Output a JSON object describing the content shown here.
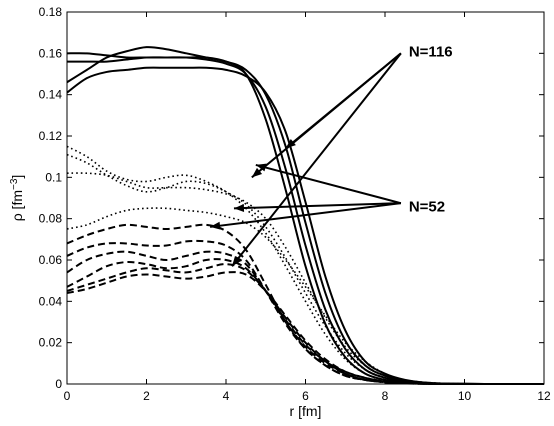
{
  "chart_data": {
    "type": "line",
    "xlabel": "r [fm]",
    "ylabel": {
      "base": "ρ [fm",
      "sup": "−3",
      "close": "]"
    },
    "xlim": [
      0,
      12
    ],
    "ylim": [
      0,
      0.18
    ],
    "xticks": [
      0,
      2,
      4,
      6,
      8,
      10,
      12
    ],
    "yticks": [
      0,
      0.02,
      0.04,
      0.06,
      0.08,
      0.1,
      0.12,
      0.14,
      0.16,
      0.18
    ],
    "xtick_labels": [
      "0",
      "2",
      "4",
      "6",
      "8",
      "10",
      "12"
    ],
    "ytick_labels": [
      "0",
      "0.02",
      "0.04",
      "0.06",
      "0.08",
      "0.1",
      "0.12",
      "0.14",
      "0.16",
      "0.18"
    ],
    "grid": false,
    "legend": "none",
    "x": [
      0,
      0.5,
      1,
      1.5,
      2,
      2.5,
      3,
      3.5,
      4,
      4.5,
      5,
      5.5,
      6,
      6.5,
      7,
      7.5,
      8,
      8.5,
      9,
      9.5,
      10,
      10.5,
      11,
      11.5,
      12
    ],
    "series": [
      {
        "style": "solid",
        "values": [
          0.16,
          0.16,
          0.159,
          0.158,
          0.158,
          0.158,
          0.158,
          0.158,
          0.156,
          0.15,
          0.128,
          0.094,
          0.057,
          0.029,
          0.013,
          0.005,
          0.002,
          0.0007,
          0.0002,
          0.0001,
          0,
          0,
          0,
          0,
          0
        ]
      },
      {
        "style": "solid",
        "values": [
          0.156,
          0.156,
          0.156,
          0.157,
          0.158,
          0.158,
          0.158,
          0.157,
          0.155,
          0.15,
          0.134,
          0.104,
          0.067,
          0.036,
          0.017,
          0.007,
          0.003,
          0.001,
          0.0003,
          0.0001,
          0,
          0,
          0,
          0,
          0
        ]
      },
      {
        "style": "solid",
        "values": [
          0.146,
          0.152,
          0.158,
          0.161,
          0.163,
          0.162,
          0.16,
          0.158,
          0.156,
          0.152,
          0.14,
          0.115,
          0.078,
          0.044,
          0.021,
          0.009,
          0.004,
          0.0015,
          0.0005,
          0.0002,
          0.0001,
          0,
          0,
          0,
          0
        ]
      },
      {
        "style": "solid",
        "values": [
          0.141,
          0.148,
          0.151,
          0.152,
          0.153,
          0.153,
          0.153,
          0.153,
          0.152,
          0.149,
          0.141,
          0.122,
          0.088,
          0.052,
          0.026,
          0.011,
          0.005,
          0.002,
          0.0007,
          0.0002,
          0.0001,
          0,
          0,
          0,
          0
        ]
      },
      {
        "style": "dotted",
        "values": [
          0.115,
          0.11,
          0.103,
          0.099,
          0.098,
          0.1,
          0.101,
          0.098,
          0.093,
          0.085,
          0.073,
          0.057,
          0.04,
          0.024,
          0.012,
          0.005,
          0.002,
          0.0008,
          0.0003,
          0.0001,
          0,
          0,
          0,
          0,
          0
        ]
      },
      {
        "style": "dotted",
        "values": [
          0.111,
          0.107,
          0.101,
          0.096,
          0.093,
          0.095,
          0.098,
          0.097,
          0.093,
          0.087,
          0.076,
          0.061,
          0.044,
          0.028,
          0.015,
          0.007,
          0.003,
          0.001,
          0.0004,
          0.0001,
          0,
          0,
          0,
          0,
          0
        ]
      },
      {
        "style": "dotted",
        "values": [
          0.102,
          0.102,
          0.101,
          0.098,
          0.095,
          0.095,
          0.095,
          0.094,
          0.092,
          0.088,
          0.08,
          0.066,
          0.049,
          0.032,
          0.018,
          0.009,
          0.004,
          0.0015,
          0.0005,
          0.0002,
          0,
          0,
          0,
          0,
          0
        ]
      },
      {
        "style": "dotted",
        "values": [
          0.075,
          0.077,
          0.081,
          0.084,
          0.085,
          0.085,
          0.084,
          0.083,
          0.081,
          0.078,
          0.071,
          0.06,
          0.047,
          0.033,
          0.02,
          0.011,
          0.005,
          0.002,
          0.0008,
          0.0003,
          0.0001,
          0,
          0,
          0,
          0
        ]
      },
      {
        "style": "dashed",
        "values": [
          0.068,
          0.072,
          0.075,
          0.077,
          0.076,
          0.075,
          0.076,
          0.077,
          0.074,
          0.065,
          0.048,
          0.03,
          0.017,
          0.009,
          0.004,
          0.002,
          0.0008,
          0.0003,
          0.0001,
          0,
          0,
          0,
          0,
          0,
          0
        ]
      },
      {
        "style": "dashed",
        "values": [
          0.062,
          0.066,
          0.068,
          0.068,
          0.067,
          0.067,
          0.069,
          0.069,
          0.067,
          0.06,
          0.045,
          0.029,
          0.017,
          0.009,
          0.004,
          0.002,
          0.0009,
          0.0004,
          0.0001,
          0,
          0,
          0,
          0,
          0,
          0
        ]
      },
      {
        "style": "dashed",
        "values": [
          0.054,
          0.06,
          0.063,
          0.064,
          0.062,
          0.06,
          0.062,
          0.064,
          0.063,
          0.058,
          0.045,
          0.03,
          0.018,
          0.01,
          0.005,
          0.002,
          0.001,
          0.0004,
          0.0001,
          0,
          0,
          0,
          0,
          0,
          0
        ]
      },
      {
        "style": "dashed",
        "values": [
          0.047,
          0.052,
          0.057,
          0.059,
          0.058,
          0.056,
          0.057,
          0.06,
          0.06,
          0.056,
          0.045,
          0.031,
          0.019,
          0.011,
          0.005,
          0.002,
          0.001,
          0.0004,
          0.0001,
          0,
          0,
          0,
          0,
          0,
          0
        ]
      },
      {
        "style": "dashed",
        "values": [
          0.045,
          0.048,
          0.051,
          0.054,
          0.056,
          0.055,
          0.054,
          0.056,
          0.058,
          0.055,
          0.045,
          0.032,
          0.02,
          0.011,
          0.006,
          0.003,
          0.0012,
          0.0005,
          0.0002,
          0,
          0,
          0,
          0,
          0,
          0
        ]
      },
      {
        "style": "dashed",
        "values": [
          0.044,
          0.046,
          0.049,
          0.052,
          0.053,
          0.052,
          0.051,
          0.052,
          0.054,
          0.053,
          0.045,
          0.033,
          0.021,
          0.012,
          0.006,
          0.003,
          0.0013,
          0.0005,
          0.0002,
          0,
          0,
          0,
          0,
          0,
          0
        ]
      }
    ],
    "annotations": [
      {
        "text": "N=116",
        "anchor": [
          8.4,
          0.16
        ],
        "label_pos": [
          8.6,
          0.161
        ],
        "targets": [
          [
            5.5,
            0.114
          ],
          [
            4.65,
            0.1
          ],
          [
            4.15,
            0.057
          ]
        ]
      },
      {
        "text": "N=52",
        "anchor": [
          8.4,
          0.0875
        ],
        "label_pos": [
          8.6,
          0.086
        ],
        "targets": [
          [
            4.75,
            0.106
          ],
          [
            4.2,
            0.085
          ],
          [
            3.6,
            0.076
          ]
        ]
      }
    ]
  }
}
